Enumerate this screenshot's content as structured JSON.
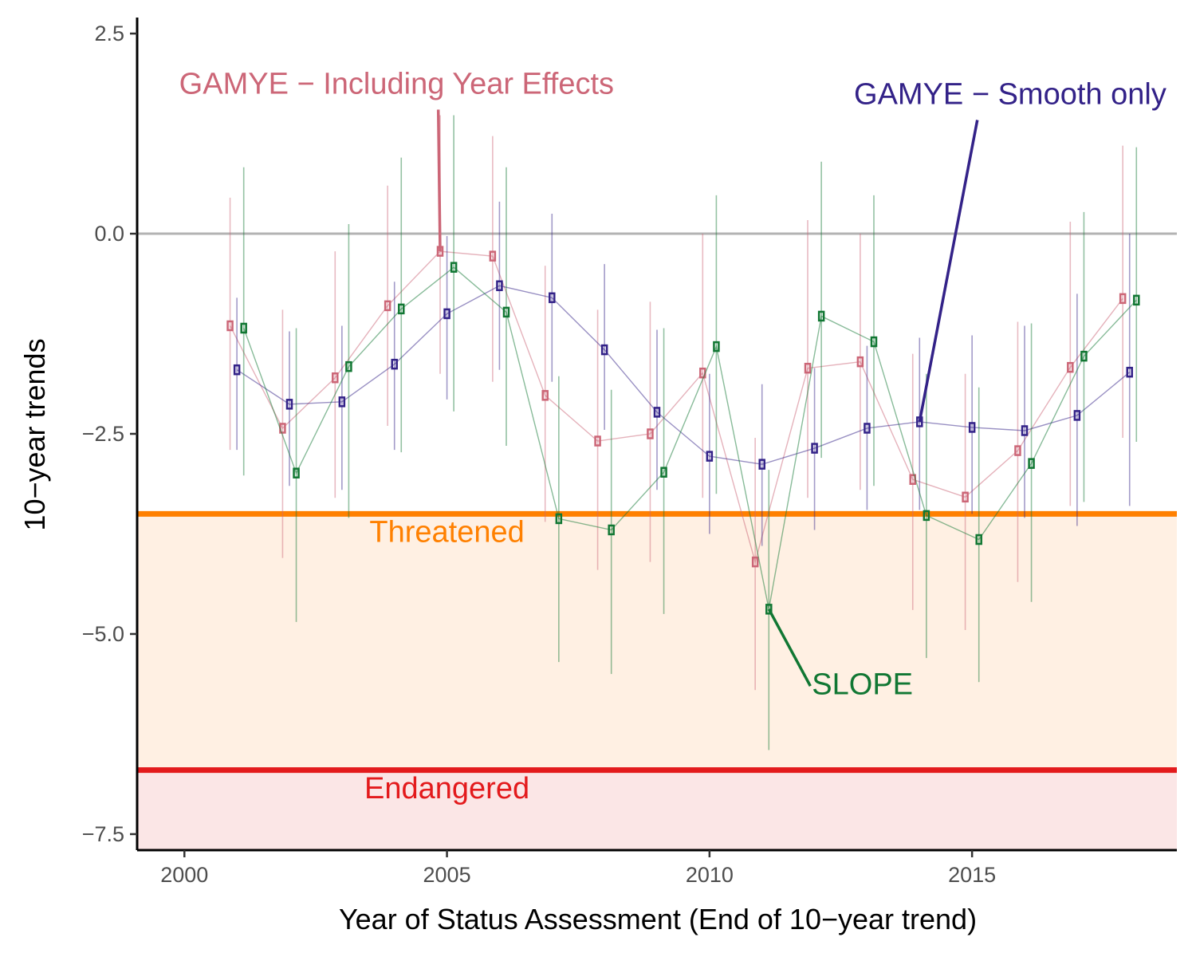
{
  "chart_data": {
    "type": "line",
    "xlabel": "Year of Status Assessment (End of 10−year trend)",
    "ylabel": "10−year trends",
    "xlim": [
      1999.1,
      2018.9
    ],
    "ylim": [
      -7.7,
      2.7
    ],
    "xticks": [
      2000,
      2005,
      2010,
      2015
    ],
    "xtick_labels": [
      "2000",
      "2005",
      "2010",
      "2015"
    ],
    "yticks": [
      2.5,
      0.0,
      -2.5,
      -5.0,
      -7.5
    ],
    "ytick_labels": [
      "2.5",
      "0.0",
      "−2.5",
      "−5.0",
      "−7.5"
    ],
    "grid": false,
    "reference_line": 0,
    "thresholds": [
      {
        "label": "Threatened",
        "value": -3.5,
        "color": "#ff8000",
        "fill": "#fff0e3",
        "fill_to": -6.7
      },
      {
        "label": "Endangered",
        "value": -6.7,
        "color": "#e31a1c",
        "fill": "#fbe6e6",
        "fill_to": -7.7
      }
    ],
    "series": [
      {
        "name": "GAMYE − Including Year Effects",
        "color": "#cc6677",
        "offset": -0.13,
        "x": [
          2001,
          2002,
          2003,
          2004,
          2005,
          2006,
          2007,
          2008,
          2009,
          2010,
          2011,
          2012,
          2013,
          2014,
          2015,
          2016,
          2017,
          2018
        ],
        "y": [
          -1.15,
          -2.43,
          -1.8,
          -0.9,
          -0.22,
          -0.28,
          -2.02,
          -2.59,
          -2.5,
          -1.74,
          -4.1,
          -1.68,
          -1.6,
          -3.07,
          -3.29,
          -2.71,
          -1.67,
          -0.81
        ],
        "lower": [
          -2.7,
          -4.05,
          -3.3,
          -2.4,
          -1.75,
          -1.85,
          -3.6,
          -4.2,
          -4.1,
          -3.3,
          -5.7,
          -3.3,
          -3.2,
          -4.7,
          -4.95,
          -4.35,
          -3.4,
          -2.55
        ],
        "upper": [
          0.45,
          -0.95,
          -0.22,
          0.6,
          1.48,
          1.22,
          -0.4,
          -0.95,
          -0.85,
          0.0,
          -2.55,
          0.17,
          0.0,
          -1.5,
          -1.75,
          -1.1,
          0.15,
          1.1
        ]
      },
      {
        "name": "GAMYE − Smooth only",
        "color": "#332288",
        "offset": 0.0,
        "x": [
          2001,
          2002,
          2003,
          2004,
          2005,
          2006,
          2007,
          2008,
          2009,
          2010,
          2011,
          2012,
          2013,
          2014,
          2015,
          2016,
          2017,
          2018
        ],
        "y": [
          -1.7,
          -2.13,
          -2.1,
          -1.63,
          -1.0,
          -0.65,
          -0.8,
          -1.45,
          -2.23,
          -2.78,
          -2.88,
          -2.68,
          -2.43,
          -2.35,
          -2.42,
          -2.46,
          -2.27,
          -1.73
        ],
        "lower": [
          -2.7,
          -3.15,
          -3.2,
          -2.7,
          -2.07,
          -1.7,
          -1.85,
          -2.45,
          -3.2,
          -3.75,
          -3.9,
          -3.7,
          -3.45,
          -3.45,
          -3.5,
          -3.55,
          -3.65,
          -3.4
        ],
        "upper": [
          -0.8,
          -1.22,
          -1.15,
          -0.6,
          -0.03,
          0.4,
          0.25,
          -0.38,
          -1.2,
          -1.75,
          -1.88,
          -1.68,
          -1.4,
          -1.3,
          -1.27,
          -1.15,
          -0.75,
          0.0
        ]
      },
      {
        "name": "SLOPE",
        "color": "#117733",
        "offset": 0.13,
        "x": [
          2001,
          2002,
          2003,
          2004,
          2005,
          2006,
          2007,
          2008,
          2009,
          2010,
          2011,
          2012,
          2013,
          2014,
          2015,
          2016,
          2017,
          2018
        ],
        "y": [
          -1.18,
          -2.99,
          -1.66,
          -0.94,
          -0.42,
          -0.98,
          -3.56,
          -3.7,
          -2.98,
          -1.41,
          -4.69,
          -1.03,
          -1.35,
          -3.52,
          -3.82,
          -2.87,
          -1.53,
          -0.83
        ],
        "lower": [
          -3.02,
          -4.85,
          -3.55,
          -2.73,
          -2.22,
          -2.65,
          -5.35,
          -5.5,
          -4.75,
          -3.25,
          -6.45,
          -2.8,
          -3.15,
          -5.3,
          -5.6,
          -4.6,
          -3.35,
          -2.6
        ],
        "upper": [
          0.83,
          -1.18,
          0.12,
          0.95,
          1.48,
          0.83,
          -1.78,
          -1.95,
          -1.18,
          0.48,
          -2.95,
          0.9,
          0.48,
          -1.75,
          -1.92,
          -1.12,
          0.27,
          1.08
        ]
      }
    ],
    "annotations": [
      {
        "text": "GAMYE − Including Year Effects",
        "color": "#cc6677",
        "label_at": [
          1999.9,
          1.75
        ],
        "anchor": "start",
        "pointer_from": [
          1999.9,
          1.55
        ],
        "pointer_to": [
          2004.87,
          -0.22
        ]
      },
      {
        "text": "GAMYE − Smooth only",
        "color": "#332288",
        "label_at": [
          2018.7,
          1.62
        ],
        "anchor": "end",
        "pointer_from": [
          2015.1,
          1.42
        ],
        "pointer_to": [
          2014.0,
          -2.35
        ]
      },
      {
        "text": "SLOPE",
        "color": "#117733",
        "label_at": [
          2011.95,
          -5.75
        ],
        "anchor": "start",
        "pointer_from": [
          2011.92,
          -5.65
        ],
        "pointer_to": [
          2011.13,
          -4.69
        ]
      },
      {
        "text": "Threatened",
        "color": "#ff8000",
        "label_at": [
          2005.0,
          -3.85
        ],
        "anchor": "middle"
      },
      {
        "text": "Endangered",
        "color": "#e31a1c",
        "label_at": [
          2005.0,
          -7.05
        ],
        "anchor": "middle"
      }
    ]
  }
}
